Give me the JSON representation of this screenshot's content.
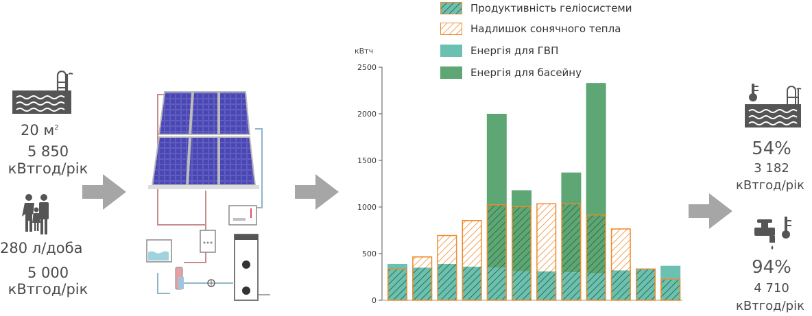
{
  "left": {
    "pool_area": "20 м",
    "pool_area_sup": "2",
    "pool_energy_value": "5 850",
    "pool_energy_unit": "кВтгод/рік",
    "water_volume": "280 л/доба",
    "dhw_energy_value": "5 000",
    "dhw_energy_unit": "кВтгод/рік"
  },
  "right": {
    "pool_percent": "54%",
    "pool_value": "3 182",
    "pool_unit": "кВтгод/рік",
    "dhw_percent": "94%",
    "dhw_value": "4 710",
    "dhw_unit": "кВтгод/рік"
  },
  "colors": {
    "dhw": "#6cc0b2",
    "pool": "#5ea774",
    "orange": "#ef8a2a",
    "arrow": "#a6a6a6"
  },
  "icons": [
    "pool-icon",
    "family-icon",
    "solar-system-diagram",
    "pool-thermometer-icon",
    "tap-thermometer-icon"
  ],
  "chart_data": {
    "type": "bar",
    "ylabel": "кВтч",
    "ylim": [
      0,
      2500
    ],
    "yticks": [
      "0",
      "500",
      "1000",
      "1500",
      "2000",
      "2500"
    ],
    "categories": [
      "",
      "",
      "",
      "",
      "",
      "",
      "",
      "",
      "",
      "",
      "",
      ""
    ],
    "legend": [
      {
        "key": "productivity",
        "label": "Продуктивність геліосистеми"
      },
      {
        "key": "surplus",
        "label": "Надлишок сонячного тепла"
      },
      {
        "key": "dhw",
        "label": "Енергія для ГВП"
      },
      {
        "key": "pool",
        "label": "Енергія для басейну"
      }
    ],
    "series": [
      {
        "name": "Енергія для ГВП",
        "values": [
          390,
          350,
          390,
          360,
          350,
          310,
          310,
          300,
          290,
          320,
          340,
          370
        ]
      },
      {
        "name": "Енергія для басейну",
        "values": [
          0,
          0,
          0,
          0,
          1650,
          870,
          0,
          1070,
          2040,
          0,
          0,
          0
        ]
      },
      {
        "name": "Продуктивність геліосистеми",
        "values": [
          340,
          470,
          700,
          860,
          1030,
          1010,
          1040,
          1040,
          920,
          770,
          340,
          230
        ]
      }
    ]
  }
}
